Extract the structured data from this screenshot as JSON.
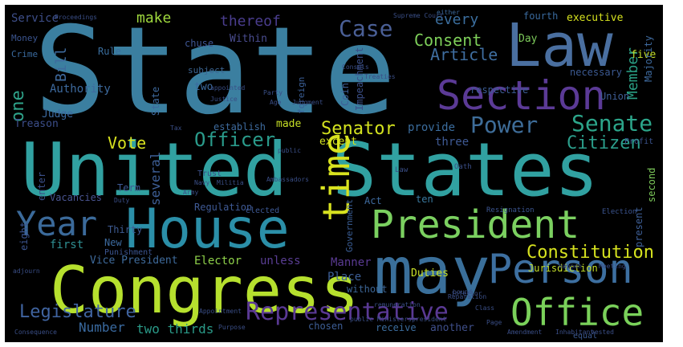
{
  "words": [
    {
      "text": "State",
      "color": "#3b7fa0"
    },
    {
      "text": "United States",
      "color": "#31a1a1"
    },
    {
      "text": "Law",
      "color": "#4a6fa0"
    },
    {
      "text": "Congress",
      "color": "#b6e02e"
    },
    {
      "text": "House",
      "color": "#2b8fa8"
    },
    {
      "text": "President",
      "color": "#7bd060"
    },
    {
      "text": "may",
      "color": "#3a6f9a"
    },
    {
      "text": "Person",
      "color": "#3d6fa0"
    },
    {
      "text": "Office",
      "color": "#7ad15a"
    },
    {
      "text": "Section",
      "color": "#5b3a96"
    },
    {
      "text": "Representative",
      "color": "#5a3994"
    },
    {
      "text": "time",
      "color": "#d8e21f"
    },
    {
      "text": "Year",
      "color": "#3b6a9a"
    },
    {
      "text": "Senate",
      "color": "#2ca58a"
    },
    {
      "text": "Power",
      "color": "#3e6d99"
    },
    {
      "text": "Case",
      "color": "#4a5f96"
    },
    {
      "text": "Senator",
      "color": "#d3e21f"
    },
    {
      "text": "Constitution",
      "color": "#d6e21f"
    },
    {
      "text": "Officer",
      "color": "#2a9b8b"
    },
    {
      "text": "Legislature",
      "color": "#4064a0"
    },
    {
      "text": "Consent",
      "color": "#7ed05a"
    },
    {
      "text": "Citizen",
      "color": "#2b9e8b"
    },
    {
      "text": "Vote",
      "color": "#d8e21f"
    },
    {
      "text": "Article",
      "color": "#3f6ea0"
    },
    {
      "text": "Member",
      "color": "#2aa085"
    },
    {
      "text": "make",
      "color": "#9fd83e"
    },
    {
      "text": "every",
      "color": "#3b6e9e"
    },
    {
      "text": "thereof",
      "color": "#4a3d8e"
    },
    {
      "text": "one",
      "color": "#2fa38a"
    },
    {
      "text": "Bill",
      "color": "#3e6a9e"
    },
    {
      "text": "Service",
      "color": "#3e4f8a"
    },
    {
      "text": "Number",
      "color": "#3a6aa0"
    },
    {
      "text": "two thirds",
      "color": "#2a9a88"
    },
    {
      "text": "Manner",
      "color": "#5a3a92"
    },
    {
      "text": "first",
      "color": "#2f8f92"
    },
    {
      "text": "Elector",
      "color": "#8fd14a"
    },
    {
      "text": "Duties",
      "color": "#c8e028"
    },
    {
      "text": "several",
      "color": "#3e5f97"
    },
    {
      "text": "provide",
      "color": "#3b6d9e"
    },
    {
      "text": "three",
      "color": "#3f5a94"
    },
    {
      "text": "except",
      "color": "#d4e21f"
    },
    {
      "text": "made",
      "color": "#c6df26"
    },
    {
      "text": "Day",
      "color": "#7cc95a"
    },
    {
      "text": "Within",
      "color": "#4a4d90"
    },
    {
      "text": "Judge",
      "color": "#3c6aa0"
    },
    {
      "text": "Treason",
      "color": "#3c4e8a"
    },
    {
      "text": "Authority",
      "color": "#3d6a9e"
    },
    {
      "text": "unless",
      "color": "#5a3e94"
    },
    {
      "text": "Place",
      "color": "#3d5f97"
    },
    {
      "text": "another",
      "color": "#3f4f8a"
    },
    {
      "text": "five",
      "color": "#c4de2a"
    },
    {
      "text": "executive",
      "color": "#d6e21f"
    },
    {
      "text": "fourth",
      "color": "#3a6a9e"
    },
    {
      "text": "Union",
      "color": "#3f5f97"
    },
    {
      "text": "second",
      "color": "#7cc95a"
    },
    {
      "text": "ten",
      "color": "#3a7aa0"
    },
    {
      "text": "Act",
      "color": "#3e6a9e"
    },
    {
      "text": "Vice President",
      "color": "#3f6b9c"
    },
    {
      "text": "chosen",
      "color": "#3e5f97"
    },
    {
      "text": "receive",
      "color": "#3b6c9c"
    },
    {
      "text": "without",
      "color": "#3c6595"
    },
    {
      "text": "Rule",
      "color": "#3a6e9e"
    },
    {
      "text": "chuse",
      "color": "#3e5593"
    },
    {
      "text": "two",
      "color": "#3c6ba0"
    },
    {
      "text": "establish",
      "color": "#3e6b9e"
    },
    {
      "text": "Regulation",
      "color": "#3f5a95"
    },
    {
      "text": "Vacancies",
      "color": "#4a5592"
    },
    {
      "text": "Thirty",
      "color": "#3e5b93"
    },
    {
      "text": "New",
      "color": "#3c6a9e"
    },
    {
      "text": "eight",
      "color": "#3c5590"
    },
    {
      "text": "necessary",
      "color": "#3c5a92"
    },
    {
      "text": "respective",
      "color": "#3c5c94"
    },
    {
      "text": "Jurisdiction",
      "color": "#c4de2a"
    },
    {
      "text": "present",
      "color": "#3e5f97"
    },
    {
      "text": "Coin",
      "color": "#3e5f97"
    },
    {
      "text": "Impeachment",
      "color": "#3b4f88"
    },
    {
      "text": "Money",
      "color": "#3b5590"
    },
    {
      "text": "Crime",
      "color": "#3a6a9e"
    },
    {
      "text": "subject",
      "color": "#3c6694"
    },
    {
      "text": "either",
      "color": "#3c6a9e"
    },
    {
      "text": "Majority",
      "color": "#3e6a9e"
    },
    {
      "text": "Term",
      "color": "#3e5a96"
    },
    {
      "text": "Government",
      "color": "#3b5f97"
    },
    {
      "text": "enter",
      "color": "#3b4f88"
    },
    {
      "text": "foreign",
      "color": "#3b5f97"
    },
    {
      "text": "State",
      "color": "#3e6a9e"
    },
    {
      "text": "equal",
      "color": "#3c5a92"
    },
    {
      "text": "Profit",
      "color": "#3c5590"
    },
    {
      "text": "Trust",
      "color": "#3a4e86"
    },
    {
      "text": "Punishment",
      "color": "#3c5590"
    },
    {
      "text": "elected",
      "color": "#3e5a96"
    },
    {
      "text": "Resignation",
      "color": "#3c5590"
    },
    {
      "text": "Law",
      "color": "#3a4e86"
    },
    {
      "text": "Election",
      "color": "#3c5590"
    },
    {
      "text": "Oath",
      "color": "#3a4e86"
    },
    {
      "text": "Proceedings",
      "color": "#3a4e86"
    },
    {
      "text": "Supreme Court",
      "color": "#3a4e86"
    },
    {
      "text": "Party",
      "color": "#3a4e86"
    },
    {
      "text": "Age",
      "color": "#3a4e86"
    },
    {
      "text": "Judgment",
      "color": "#3a4e86"
    },
    {
      "text": "Justice",
      "color": "#3a4e86"
    },
    {
      "text": "Treaties",
      "color": "#3a4e86"
    },
    {
      "text": "Consuls",
      "color": "#3a4e86"
    },
    {
      "text": "appointed",
      "color": "#3a4e86"
    },
    {
      "text": "Ambassadors",
      "color": "#3a4e86"
    },
    {
      "text": "public",
      "color": "#3a4e86"
    },
    {
      "text": "Tax",
      "color": "#3a4e86"
    },
    {
      "text": "Army",
      "color": "#3a4e86"
    },
    {
      "text": "Navy",
      "color": "#3a4e86"
    },
    {
      "text": "Militia",
      "color": "#3a4e86"
    },
    {
      "text": "Duty",
      "color": "#3a4e86"
    },
    {
      "text": "Class",
      "color": "#3a4e86"
    },
    {
      "text": "Page",
      "color": "#3a4e86"
    },
    {
      "text": "Purpose",
      "color": "#3a4e86"
    },
    {
      "text": "Consequence",
      "color": "#3a4e86"
    },
    {
      "text": "Appointment",
      "color": "#3a4e86"
    },
    {
      "text": "Amendment",
      "color": "#3a4e86"
    },
    {
      "text": "Inhabitant",
      "color": "#3a4e86"
    },
    {
      "text": "vested",
      "color": "#3a4e86"
    },
    {
      "text": "public Ministerspresident",
      "color": "#3a4e86"
    },
    {
      "text": "adjourn",
      "color": "#3a4e86"
    },
    {
      "text": "Reparation",
      "color": "#3a4e86"
    },
    {
      "text": "inferior",
      "color": "#3a4e86"
    },
    {
      "text": "bound",
      "color": "#3a4e86"
    },
    {
      "text": "remuneration",
      "color": "#3a4e86"
    },
    {
      "text": "happen",
      "color": "#3a4e86"
    },
    {
      "text": "Meeting",
      "color": "#3a4e86"
    },
    {
      "text": "Court",
      "color": "#3a4e86"
    }
  ]
}
